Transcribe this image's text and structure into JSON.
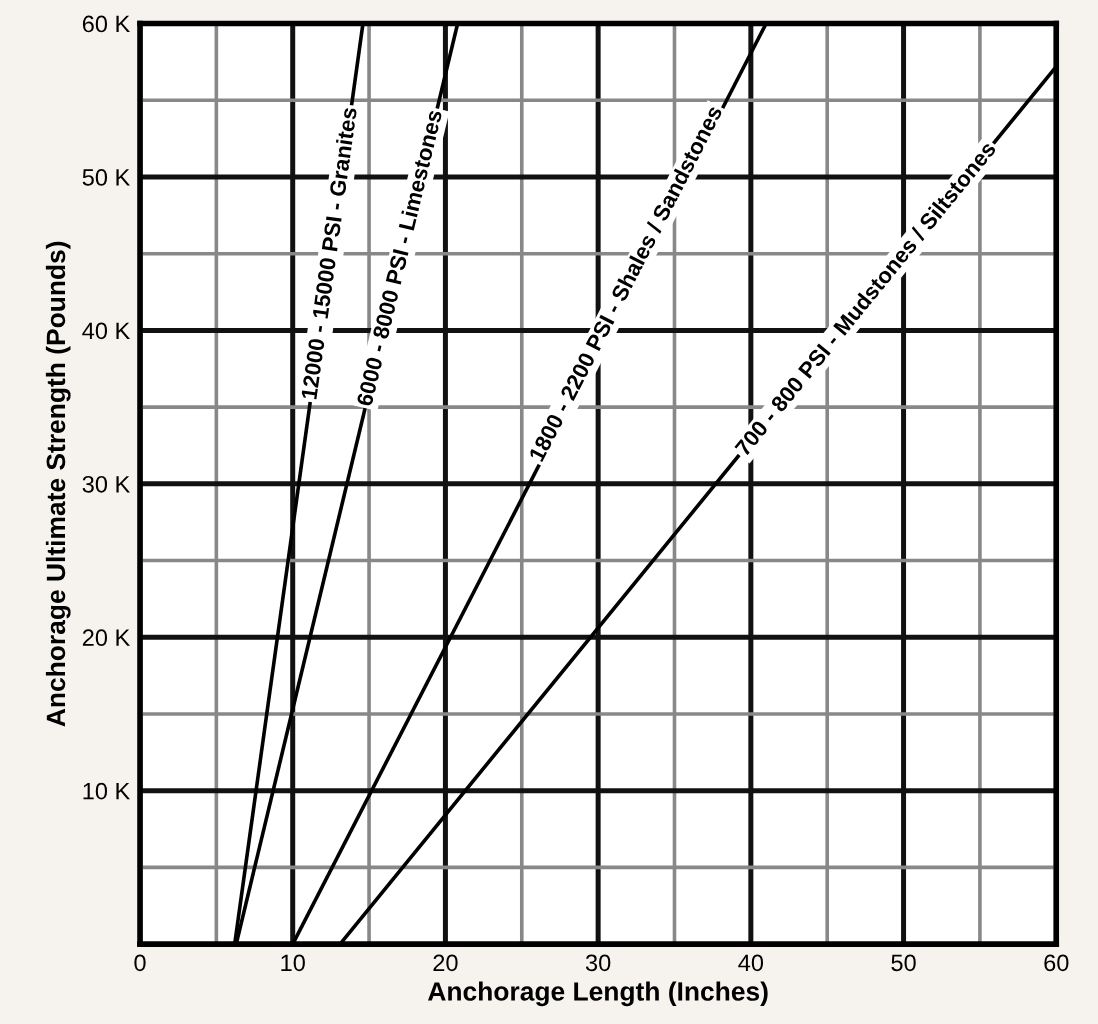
{
  "chart_data": {
    "type": "line",
    "xlabel": "Anchorage Length (Inches)",
    "ylabel": "Anchorage Ultimate Strength (Pounds)",
    "series": [
      {
        "color": "#000000",
        "x": [
          6.2,
          14.6
        ],
        "values": [
          0,
          60000
        ]
      },
      {
        "color": "#000000",
        "x": [
          6.3,
          20.8
        ],
        "values": [
          0,
          60000
        ]
      },
      {
        "color": "#000000",
        "x": [
          10,
          41
        ],
        "values": [
          0,
          60000
        ]
      },
      {
        "color": "#000000",
        "x": [
          13.1,
          60
        ],
        "values": [
          0,
          57200
        ]
      }
    ],
    "annotations": [
      {
        "text": "12000 - 15000 PSI - Granites",
        "x": 12.5,
        "y": 45000
      },
      {
        "text": "6000 - 8000 PSI - Limestones",
        "x": 17.1,
        "y": 44700
      },
      {
        "text": "1800 - 2200 PSI - Shales / Sandstones",
        "x": 31.9,
        "y": 43000
      },
      {
        "text": "700 - 800 PSI - Mudstones / Siltstones",
        "x": 47.6,
        "y": 42000
      }
    ],
    "xlim": [
      0,
      60
    ],
    "ylim": [
      0,
      60000
    ],
    "xticks": [
      0,
      {
        "value": 5,
        "label": null
      },
      10,
      {
        "value": 15,
        "label": null
      },
      20,
      {
        "value": 25,
        "label": null
      },
      30,
      {
        "value": 35,
        "label": null
      },
      40,
      {
        "value": 45,
        "label": null
      },
      50,
      {
        "value": 55,
        "label": null
      },
      60
    ],
    "yticks": [
      {
        "value": 5000,
        "label": null
      },
      {
        "value": 10000,
        "label": "10 K"
      },
      {
        "value": 15000,
        "label": null
      },
      {
        "value": 20000,
        "label": "20 K"
      },
      {
        "value": 25000,
        "label": null
      },
      {
        "value": 30000,
        "label": "30 K"
      },
      {
        "value": 35000,
        "label": null
      },
      {
        "value": 40000,
        "label": "40 K"
      },
      {
        "value": 45000,
        "label": null
      },
      {
        "value": 50000,
        "label": "50 K"
      },
      {
        "value": 55000,
        "label": null
      },
      {
        "value": 60000,
        "label": "60 K"
      }
    ],
    "grid": true,
    "marker": "none",
    "line_style": "solid"
  }
}
